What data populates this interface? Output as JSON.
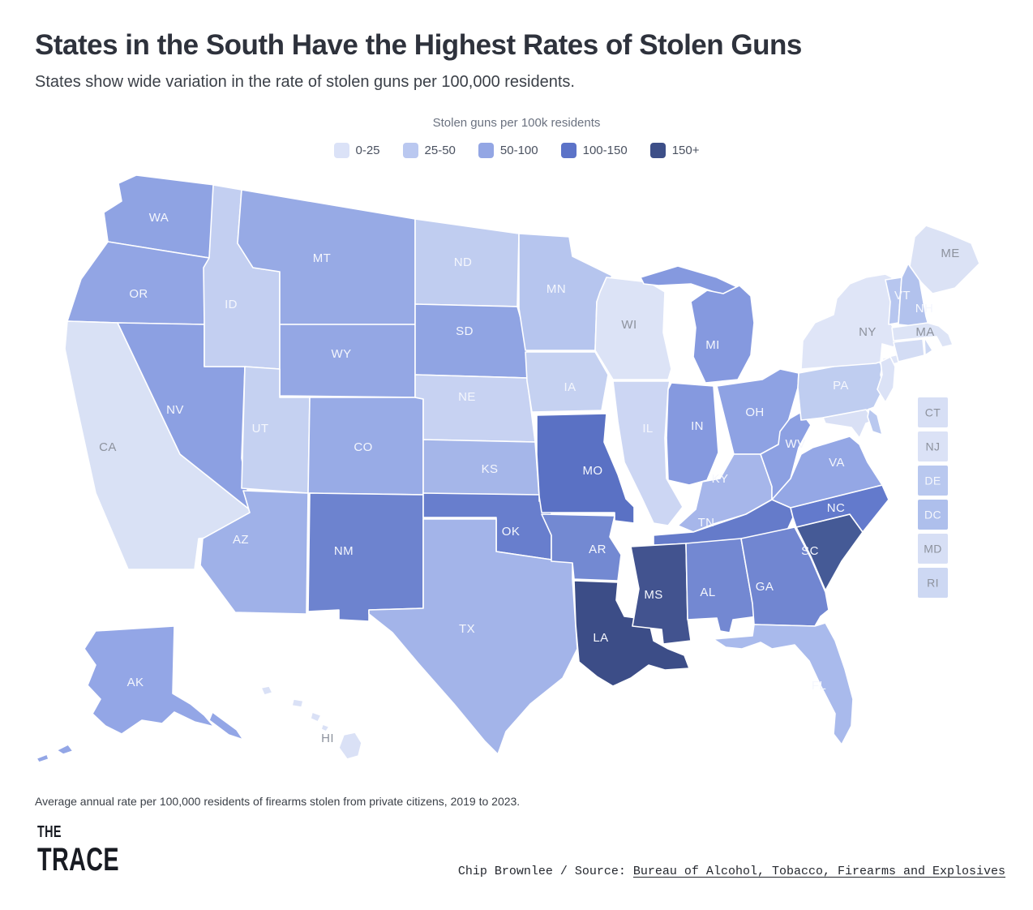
{
  "header": {
    "title": "States in the South Have the Highest Rates of Stolen Guns",
    "subtitle": "States show wide variation in the rate of stolen guns per 100,000 residents."
  },
  "legend": {
    "title": "Stolen guns per 100k residents",
    "items": [
      {
        "label": "0-25",
        "color": "#dbe2f7"
      },
      {
        "label": "25-50",
        "color": "#bac8f0"
      },
      {
        "label": "50-100",
        "color": "#93a6e4"
      },
      {
        "label": "100-150",
        "color": "#5c73c8"
      },
      {
        "label": "150+",
        "color": "#3d4f88"
      }
    ]
  },
  "map": {
    "stroke": "#ffffff",
    "label_colors": {
      "light": "#8d929d",
      "dark": "#f5f7fd"
    },
    "states": [
      {
        "abbr": "WA",
        "fill": "#8fa3e3",
        "label": [
          196,
          268
        ],
        "label_style": "dark",
        "shapes": [
          "168,216 265,228 258,318 133,298 128,262 150,248 146,226"
        ]
      },
      {
        "abbr": "OR",
        "fill": "#92a5e4",
        "label": [
          171,
          362
        ],
        "label_style": "dark",
        "shapes": [
          "133,298 258,318 252,400 145,398 83,396 100,344"
        ]
      },
      {
        "abbr": "CA",
        "fill": "#d9e1f5",
        "label": [
          133,
          551
        ],
        "label_style": "light",
        "shapes": [
          "83,396 145,398 222,560 308,628 312,658 245,664 240,702 158,702 118,608 94,498 80,430"
        ]
      },
      {
        "abbr": "NV",
        "fill": "#8ca0e2",
        "label": [
          216,
          505
        ],
        "label_style": "dark",
        "shapes": [
          "145,398 252,400 252,452 302,452 298,565 310,630 222,560"
        ]
      },
      {
        "abbr": "ID",
        "fill": "#c3cff1",
        "label": [
          285,
          375
        ],
        "label_style": "dark",
        "shapes": [
          "263,228 298,234 293,300 312,330 345,335 345,455 302,452 252,452 252,400 251,330 258,318"
        ]
      },
      {
        "abbr": "MT",
        "fill": "#97aae5",
        "label": [
          397,
          318
        ],
        "label_style": "dark",
        "shapes": [
          "298,234 512,270 512,400 345,400 345,335 312,330 293,300"
        ]
      },
      {
        "abbr": "WY",
        "fill": "#94a7e4",
        "label": [
          421,
          436
        ],
        "label_style": "dark",
        "shapes": [
          "345,400 512,400 512,490 345,488"
        ]
      },
      {
        "abbr": "UT",
        "fill": "#c5d1f1",
        "label": [
          321,
          528
        ],
        "label_style": "dark",
        "shapes": [
          "302,452 345,455 345,490 382,490 380,608 298,602"
        ]
      },
      {
        "abbr": "CO",
        "fill": "#98abe6",
        "label": [
          448,
          551
        ],
        "label_style": "dark",
        "shapes": [
          "382,490 512,490 522,492 522,610 380,608"
        ]
      },
      {
        "abbr": "AZ",
        "fill": "#9fb1e8",
        "label": [
          297,
          665
        ],
        "label_style": "dark",
        "shapes": [
          "300,605 380,608 378,757 290,755 247,697 250,664 308,632"
        ]
      },
      {
        "abbr": "NM",
        "fill": "#6d83cf",
        "label": [
          424,
          679
        ],
        "label_style": "dark",
        "shapes": [
          "382,608 522,610 522,750 455,752 455,766 418,764 418,752 380,754"
        ]
      },
      {
        "abbr": "ND",
        "fill": "#c0cdf0",
        "label": [
          571,
          323
        ],
        "label_style": "dark",
        "shapes": [
          "512,270 640,288 638,378 512,375"
        ]
      },
      {
        "abbr": "SD",
        "fill": "#90a4e3",
        "label": [
          573,
          408
        ],
        "label_style": "dark",
        "shapes": [
          "512,375 638,378 650,420 650,466 512,462"
        ]
      },
      {
        "abbr": "NE",
        "fill": "#c7d2f2",
        "label": [
          576,
          489
        ],
        "label_style": "dark",
        "shapes": [
          "512,462 650,466 660,545 522,542 522,492 512,490"
        ]
      },
      {
        "abbr": "KS",
        "fill": "#a5b6e9",
        "label": [
          604,
          578
        ],
        "label_style": "dark",
        "shapes": [
          "522,542 660,545 665,612 522,610"
        ]
      },
      {
        "abbr": "OK",
        "fill": "#687ecd",
        "label": [
          630,
          655
        ],
        "label_style": "dark",
        "shapes": [
          "522,608 665,610 665,618 680,618 680,690 612,680 612,638 522,638"
        ]
      },
      {
        "abbr": "TX",
        "fill": "#a3b4e9",
        "label": [
          576,
          775
        ],
        "label_style": "dark",
        "shapes": [
          "522,640 612,640 612,680 680,690 706,692 706,714 712,800 694,836 654,868 624,902 614,930 598,914 560,868 516,818 484,780 455,757 455,752 522,750"
        ]
      },
      {
        "abbr": "MN",
        "fill": "#b6c5ee",
        "label": [
          686,
          356
        ],
        "label_style": "dark",
        "shapes": [
          "640,288 702,292 706,316 755,340 736,372 734,432 648,432 640,380"
        ]
      },
      {
        "abbr": "IA",
        "fill": "#c5d1f1",
        "label": [
          703,
          477
        ],
        "label_style": "dark",
        "shapes": [
          "648,434 734,434 750,462 742,506 656,508 650,470"
        ]
      },
      {
        "abbr": "MO",
        "fill": "#5a71c4",
        "label": [
          731,
          580
        ],
        "label_style": "dark",
        "shapes": [
          "662,512 748,510 745,545 762,585 772,615 782,625 782,645 758,642 758,632 668,632 665,612 662,560"
        ]
      },
      {
        "abbr": "AR",
        "fill": "#7389d2",
        "label": [
          737,
          677
        ],
        "label_style": "dark",
        "shapes": [
          "668,634 758,636 752,662 766,684 762,716 708,714 706,694 680,692 680,660"
        ]
      },
      {
        "abbr": "LA",
        "fill": "#3c4d87",
        "label": [
          741,
          786
        ],
        "label_style": "dark",
        "shapes": [
          "708,716 762,718 760,740 770,760 800,764 806,790 824,800 844,808 850,824 820,826 800,820 778,836 756,846 736,834 714,816 710,770"
        ]
      },
      {
        "abbr": "WI",
        "fill": "#dce3f6",
        "label": [
          776,
          400
        ],
        "label_style": "light",
        "shapes": [
          "748,342 800,348 820,360 818,410 828,455 824,468 756,468 734,432 736,372 740,360"
        ]
      },
      {
        "abbr": "IL",
        "fill": "#ccd6f3",
        "label": [
          799,
          528
        ],
        "label_style": "dark",
        "shapes": [
          "756,470 826,470 824,480 820,540 822,590 842,625 824,648 806,645 792,615 770,570 762,520"
        ]
      },
      {
        "abbr": "IN",
        "fill": "#8599df",
        "label": [
          860,
          525
        ],
        "label_style": "dark",
        "shapes": [
          "828,472 880,476 886,558 872,592 850,598 824,592 822,540 824,480"
        ]
      },
      {
        "abbr": "MI",
        "fill": "#8599df",
        "label": [
          879,
          425
        ],
        "label_style": "dark",
        "shapes": [
          "790,342 836,328 884,342 918,358 898,366 852,350 812,352 794,350",
          "852,372 872,358 892,362 912,352 926,365 930,398 926,438 910,468 870,472 855,440 858,404"
        ]
      },
      {
        "abbr": "OH",
        "fill": "#8ea2e3",
        "label": [
          931,
          508
        ],
        "label_style": "dark",
        "shapes": [
          "884,476 940,468 962,455 985,460 984,478 972,520 960,548 938,560 905,560"
        ]
      },
      {
        "abbr": "KY",
        "fill": "#a6b6ea",
        "label": [
          888,
          590
        ],
        "label_style": "dark",
        "shapes": [
          "836,648 858,628 866,594 888,590 905,560 938,560 952,600 952,616 920,634 880,646 855,656"
        ]
      },
      {
        "abbr": "TN",
        "fill": "#657bca",
        "label": [
          871,
          644
        ],
        "label_style": "dark",
        "shapes": [
          "806,660 855,656 920,634 952,616 975,626 978,638 968,660 940,666 806,672"
        ]
      },
      {
        "abbr": "MS",
        "fill": "#42538f",
        "label": [
          806,
          733
        ],
        "label_style": "dark",
        "shapes": [
          "778,674 846,670 848,762 852,790 818,794 816,776 780,772 788,726"
        ]
      },
      {
        "abbr": "AL",
        "fill": "#7388d2",
        "label": [
          873,
          730
        ],
        "label_style": "dark",
        "shapes": [
          "846,670 914,664 928,744 934,760 904,764 900,780 888,778 884,762 848,764"
        ]
      },
      {
        "abbr": "GA",
        "fill": "#7186d1",
        "label": [
          943,
          723
        ],
        "label_style": "dark",
        "shapes": [
          "914,664 980,650 1000,688 1018,730 1022,752 1012,760 1005,772 930,770 928,744"
        ]
      },
      {
        "abbr": "FL",
        "fill": "#a9baec",
        "label": [
          1010,
          845
        ],
        "label_style": "dark",
        "shapes": [
          "880,788 928,784 930,770 1005,772 1018,768 1030,790 1042,825 1052,862 1050,895 1038,918 1028,905 1030,880 1012,845 998,815 980,795 952,800 938,792 915,800 895,798"
        ]
      },
      {
        "abbr": "SC",
        "fill": "#455a96",
        "label": [
          999,
          679
        ],
        "label_style": "dark",
        "shapes": [
          "982,650 1048,634 1064,656 1038,692 1018,728 1000,686"
        ]
      },
      {
        "abbr": "NC",
        "fill": "#637acc",
        "label": [
          1031,
          626
        ],
        "label_style": "dark",
        "shapes": [
          "975,626 1088,598 1096,616 1064,656 1048,634 982,650 978,638"
        ]
      },
      {
        "abbr": "VA",
        "fill": "#94a7e5",
        "label": [
          1032,
          570
        ],
        "label_style": "dark",
        "shapes": [
          "952,616 975,590 988,560 1002,552 1048,538 1060,548 1070,570 1088,598 975,626"
        ]
      },
      {
        "abbr": "WV",
        "fill": "#8ca0e2",
        "label": [
          981,
          547
        ],
        "label_style": "dark",
        "shapes": [
          "938,560 960,548 962,532 974,516 988,508 1000,524 985,552 975,590 952,616 952,600"
        ]
      },
      {
        "abbr": "PA",
        "fill": "#bfcdf0",
        "label": [
          1037,
          475
        ],
        "label_style": "dark",
        "shapes": [
          "985,460 1082,442 1088,452 1086,462 1090,478 1078,502 1068,506 1015,515 988,518 984,478"
        ]
      },
      {
        "abbr": "NY",
        "fill": "#dfe5f7",
        "label": [
          1070,
          409
        ],
        "label_style": "light",
        "shapes": [
          "988,455 990,420 1005,398 1028,388 1032,368 1048,350 1068,342 1092,338 1100,342 1102,372 1098,398 1108,415 1102,428 1088,424 1086,446 1080,448",
          "1088,442 1120,434 1124,442 1092,452"
        ]
      },
      {
        "abbr": "NJ",
        "fill": "#dbe2f6",
        "label": null,
        "label_style": "light",
        "shapes": [
          "1086,446 1098,440 1104,452 1102,478 1092,496 1082,480 1088,462"
        ]
      },
      {
        "abbr": "MD",
        "fill": "#d9e0f5",
        "label": null,
        "label_style": "light",
        "shapes": [
          "1015,515 1068,505 1078,518 1068,522 1060,540 1050,527 1018,522"
        ]
      },
      {
        "abbr": "DE",
        "fill": "#b9c8ef",
        "label": null,
        "label_style": "dark",
        "shapes": [
          "1072,504 1082,512 1088,536 1076,532 1070,514"
        ]
      },
      {
        "abbr": "VT",
        "fill": "#b7c6ef",
        "label": [
          1113,
          364
        ],
        "label_style": "dark",
        "shapes": [
          "1092,345 1112,342 1108,398 1096,400 1098,372"
        ]
      },
      {
        "abbr": "NH",
        "fill": "#b2c2ed",
        "label": [
          1140,
          380
        ],
        "label_style": "dark",
        "shapes": [
          "1112,342 1120,325 1134,345 1142,390 1146,404 1108,400 1110,370"
        ]
      },
      {
        "abbr": "MA",
        "fill": "#dde4f6",
        "label": [
          1141,
          409
        ],
        "label_style": "light",
        "shapes": [
          "1100,404 1144,398 1158,402 1170,412 1175,425 1162,428 1155,415 1142,416 1102,420"
        ]
      },
      {
        "abbr": "CT",
        "fill": "#d3dcf4",
        "label": null,
        "label_style": "light",
        "shapes": [
          "1102,422 1138,418 1140,438 1108,446"
        ]
      },
      {
        "abbr": "RI",
        "fill": "#cdd8f3",
        "label": null,
        "label_style": "light",
        "shapes": [
          "1140,416 1150,432 1141,438"
        ]
      },
      {
        "abbr": "ME",
        "fill": "#dbe2f5",
        "label": [
          1172,
          312
        ],
        "label_style": "light",
        "shapes": [
          "1122,328 1128,292 1142,278 1165,286 1198,300 1208,325 1178,355 1150,362 1136,348"
        ]
      },
      {
        "abbr": "AK",
        "fill": "#93a6e6",
        "label": [
          167,
          841
        ],
        "label_style": "dark",
        "shapes": [
          "118,778 215,772 213,855 235,868 252,882 264,896 240,890 215,878 200,892 175,888 150,905 130,895 114,880 124,862 108,845 118,820 104,800",
          "70,925 84,918 90,926 78,930",
          "45,935 58,930 60,936 48,940",
          "262,878 292,900 300,912 282,906 258,888"
        ]
      },
      {
        "abbr": "HI",
        "fill": "#dae1f6",
        "label": [
          404,
          910
        ],
        "label_style": "light",
        "shapes": [
          "322,848 332,846 336,854 326,857",
          "362,862 374,864 372,872 360,870",
          "385,878 396,882 392,890 383,886",
          "398,893 406,896 402,902 396,899",
          "424,906 438,903 446,916 442,932 428,936 418,922"
        ]
      }
    ],
    "side_states": [
      {
        "abbr": "CT",
        "fill": "#d7dff5",
        "label_style": "light"
      },
      {
        "abbr": "NJ",
        "fill": "#dbe2f6",
        "label_style": "light"
      },
      {
        "abbr": "DE",
        "fill": "#b9c8ef",
        "label_style": "dark"
      },
      {
        "abbr": "DC",
        "fill": "#aebfec",
        "label_style": "dark"
      },
      {
        "abbr": "MD",
        "fill": "#d7dff5",
        "label_style": "light"
      },
      {
        "abbr": "RI",
        "fill": "#cdd8f3",
        "label_style": "light"
      }
    ]
  },
  "footer": {
    "note": "Average annual rate per 100,000 residents of firearms stolen from private citizens, 2019 to 2023.",
    "logo_line1": "THE",
    "logo_line2": "TRACE",
    "credit_text": "Chip Brownlee / Source: ",
    "credit_link": "Bureau of Alcohol, Tobacco, Firearms and Explosives"
  },
  "chart_data": {
    "type": "choropleth-map",
    "title": "States in the South Have the Highest Rates of Stolen Guns",
    "unit": "Stolen guns per 100k residents",
    "buckets": [
      "0-25",
      "25-50",
      "50-100",
      "100-150",
      "150+"
    ],
    "bucket_colors": [
      "#dbe2f7",
      "#bac8f0",
      "#93a6e4",
      "#5c73c8",
      "#3d4f88"
    ],
    "state_categories": {
      "WA": "50-100",
      "OR": "50-100",
      "CA": "0-25",
      "NV": "50-100",
      "ID": "25-50",
      "MT": "50-100",
      "WY": "50-100",
      "UT": "25-50",
      "CO": "50-100",
      "AZ": "50-100",
      "NM": "100-150",
      "ND": "25-50",
      "SD": "50-100",
      "NE": "25-50",
      "KS": "50-100",
      "OK": "100-150",
      "TX": "50-100",
      "MN": "25-50",
      "IA": "25-50",
      "MO": "100-150",
      "AR": "100-150",
      "LA": "150+",
      "WI": "0-25",
      "IL": "25-50",
      "IN": "50-100",
      "MI": "50-100",
      "OH": "50-100",
      "KY": "50-100",
      "TN": "100-150",
      "MS": "150+",
      "AL": "100-150",
      "GA": "100-150",
      "FL": "50-100",
      "SC": "150+",
      "NC": "100-150",
      "VA": "50-100",
      "WV": "50-100",
      "PA": "25-50",
      "NY": "0-25",
      "NJ": "0-25",
      "MD": "0-25",
      "DE": "25-50",
      "DC": "25-50",
      "VT": "25-50",
      "NH": "25-50",
      "MA": "0-25",
      "CT": "0-25",
      "RI": "0-25",
      "ME": "0-25",
      "AK": "50-100",
      "HI": "0-25"
    },
    "note": "Average annual rate per 100,000 residents of firearms stolen from private citizens, 2019 to 2023.",
    "source": "Bureau of Alcohol, Tobacco, Firearms and Explosives",
    "author": "Chip Brownlee",
    "legend_position": "top-center"
  }
}
